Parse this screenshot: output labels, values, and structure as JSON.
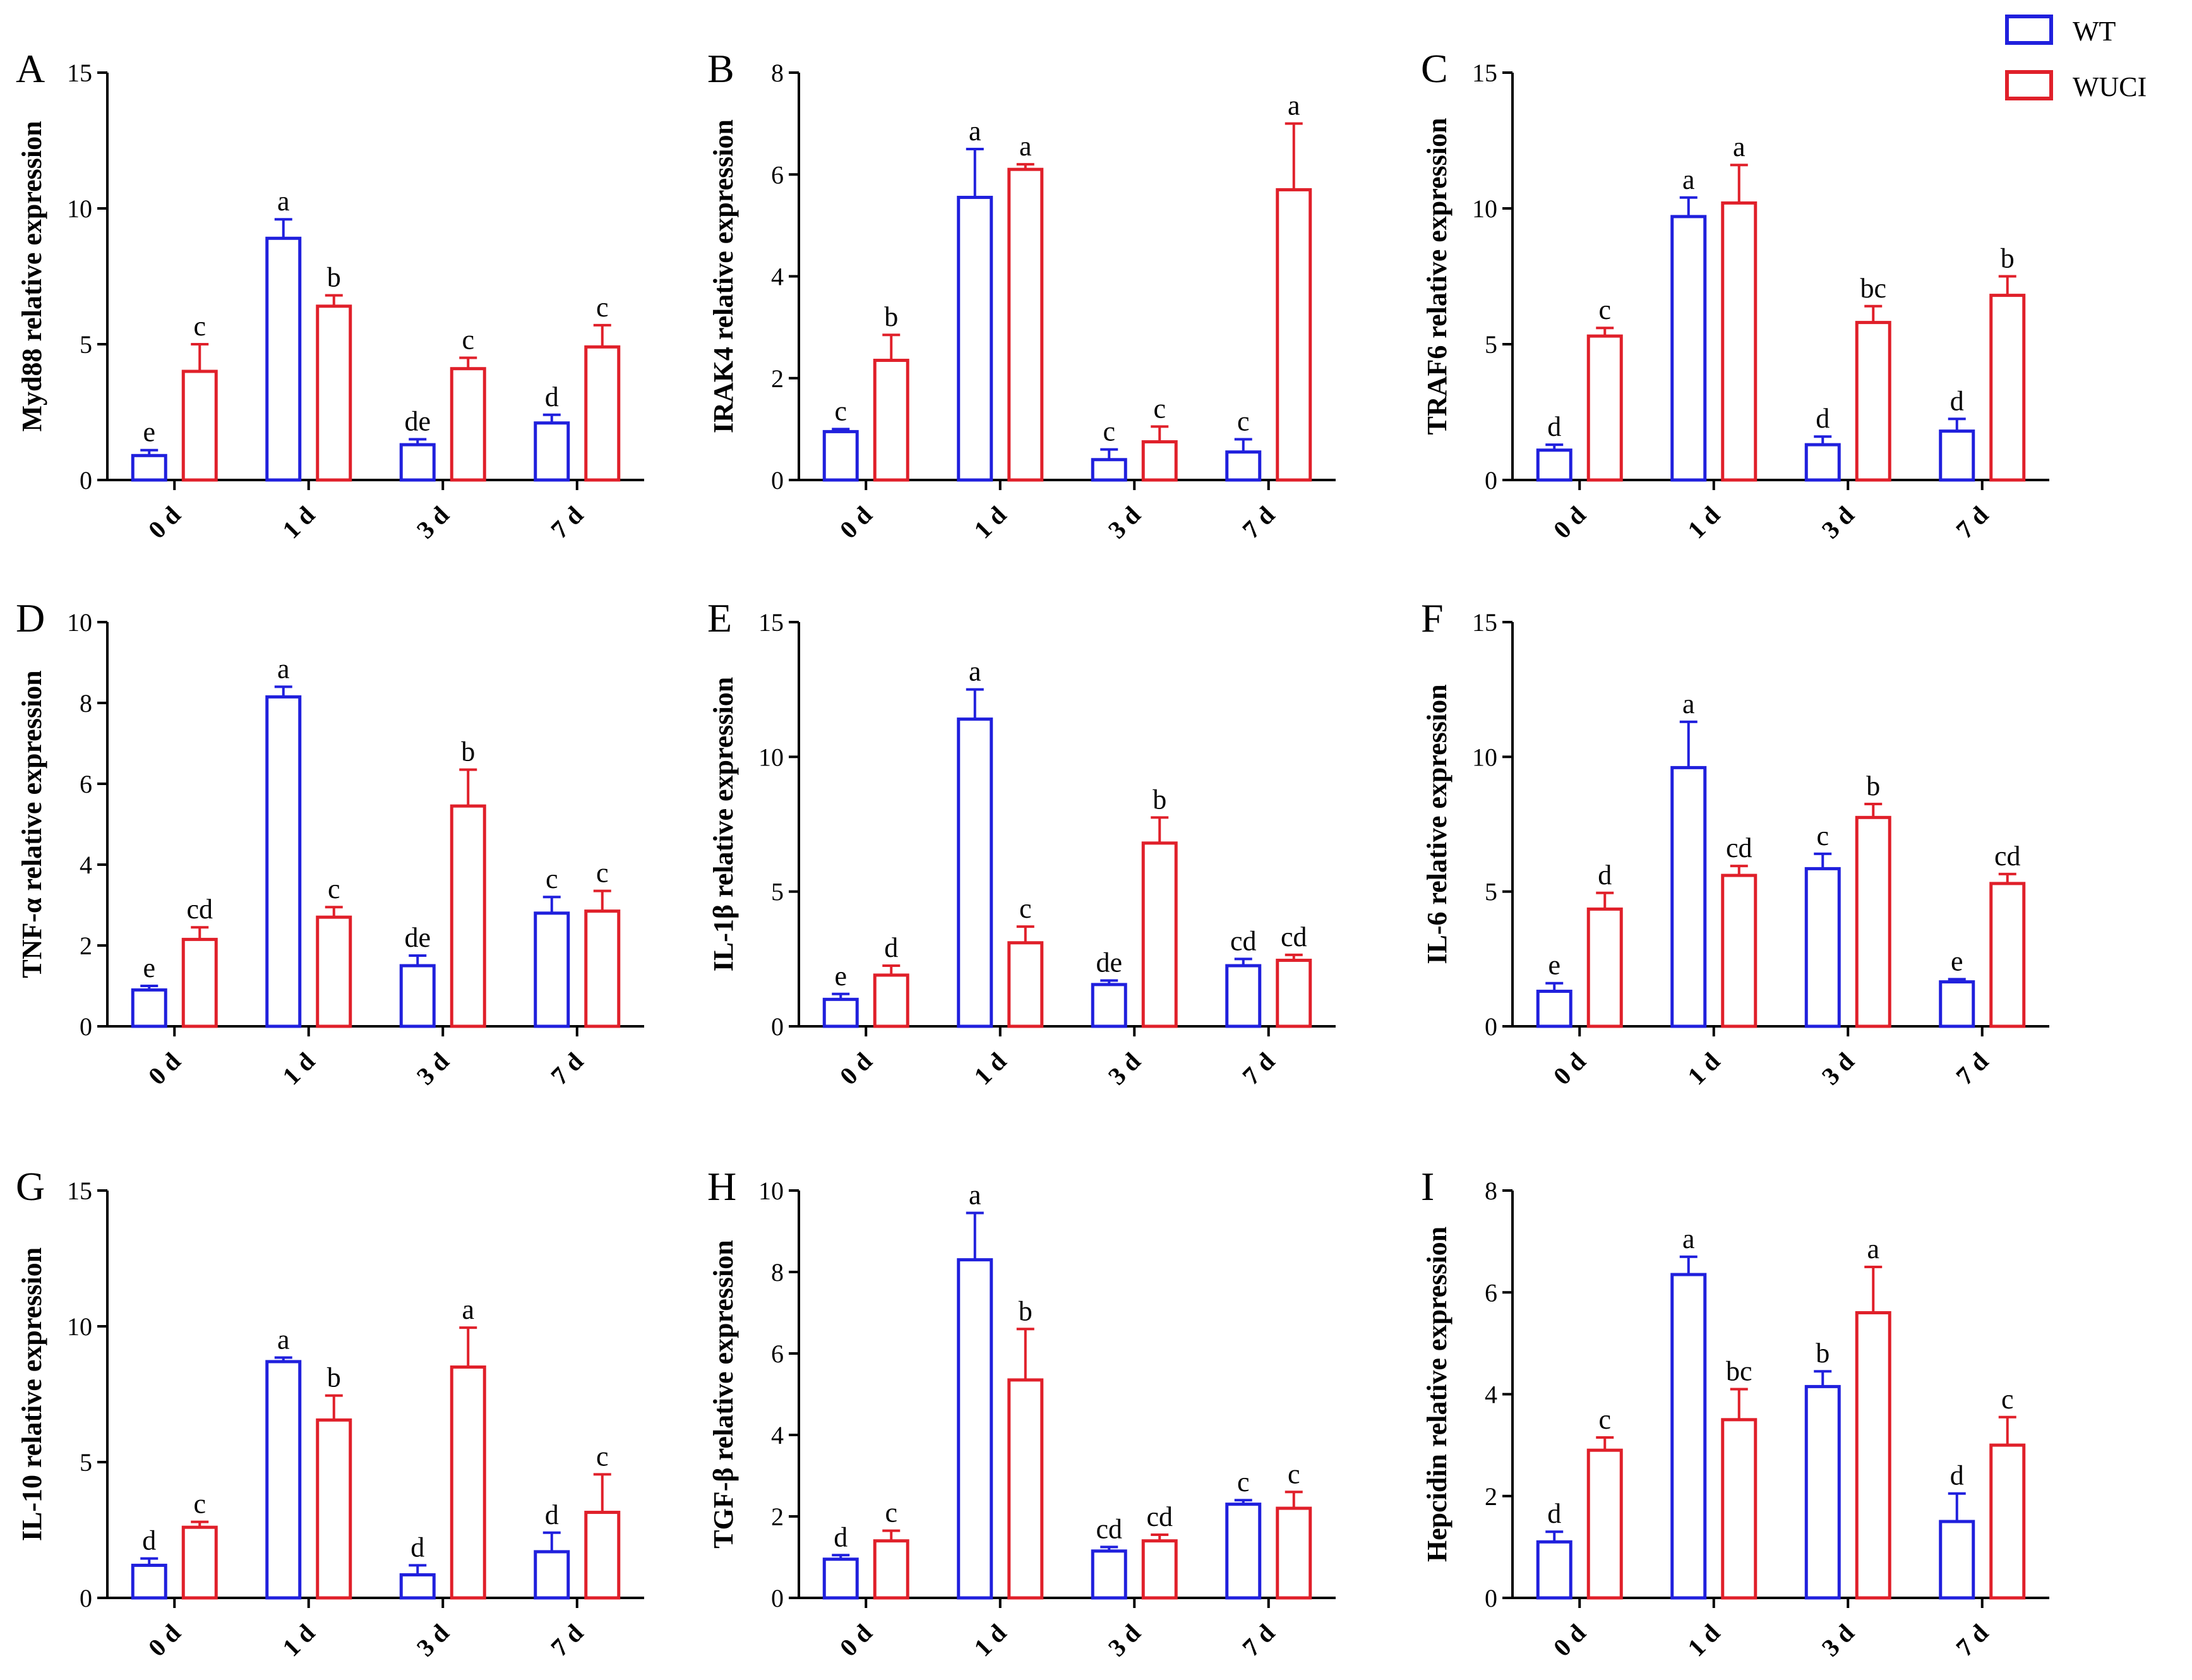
{
  "legend": [
    {
      "name": "WT",
      "color": "#2020dd"
    },
    {
      "name": "WUCI",
      "color": "#e0202a"
    }
  ],
  "chart_data": [
    {
      "panel": "A",
      "type": "bar",
      "ylabel": "Myd88 relative expression",
      "ylim": [
        0,
        15
      ],
      "yticks": [
        0,
        5,
        10,
        15
      ],
      "categories": [
        "0 d",
        "1 d",
        "3 d",
        "7 d"
      ],
      "series": [
        {
          "name": "WT",
          "values": [
            0.9,
            8.9,
            1.3,
            2.1
          ],
          "errors": [
            0.2,
            0.7,
            0.2,
            0.3
          ],
          "labels": [
            "e",
            "a",
            "de",
            "d"
          ]
        },
        {
          "name": "WUCI",
          "values": [
            4.0,
            6.4,
            4.1,
            4.9
          ],
          "errors": [
            1.0,
            0.4,
            0.4,
            0.8
          ],
          "labels": [
            "c",
            "b",
            "c",
            "c"
          ]
        }
      ]
    },
    {
      "panel": "B",
      "type": "bar",
      "ylabel": "IRAK4 relative expression",
      "ylim": [
        0,
        8
      ],
      "yticks": [
        0,
        2,
        4,
        6,
        8
      ],
      "categories": [
        "0 d",
        "1 d",
        "3 d",
        "7 d"
      ],
      "series": [
        {
          "name": "WT",
          "values": [
            0.95,
            5.55,
            0.4,
            0.55
          ],
          "errors": [
            0.05,
            0.95,
            0.2,
            0.25
          ],
          "labels": [
            "c",
            "a",
            "c",
            "c"
          ]
        },
        {
          "name": "WUCI",
          "values": [
            2.35,
            6.1,
            0.75,
            5.7
          ],
          "errors": [
            0.5,
            0.1,
            0.3,
            1.3
          ],
          "labels": [
            "b",
            "a",
            "c",
            "a"
          ]
        }
      ]
    },
    {
      "panel": "C",
      "type": "bar",
      "ylabel": "TRAF6 relative expression",
      "ylim": [
        0,
        15
      ],
      "yticks": [
        0,
        5,
        10,
        15
      ],
      "categories": [
        "0 d",
        "1 d",
        "3 d",
        "7 d"
      ],
      "series": [
        {
          "name": "WT",
          "values": [
            1.1,
            9.7,
            1.3,
            1.8
          ],
          "errors": [
            0.2,
            0.7,
            0.3,
            0.45
          ],
          "labels": [
            "d",
            "a",
            "d",
            "d"
          ]
        },
        {
          "name": "WUCI",
          "values": [
            5.3,
            10.2,
            5.8,
            6.8
          ],
          "errors": [
            0.3,
            1.4,
            0.6,
            0.7
          ],
          "labels": [
            "c",
            "a",
            "bc",
            "b"
          ]
        }
      ]
    },
    {
      "panel": "D",
      "type": "bar",
      "ylabel": "TNF-α relative expression",
      "ylim": [
        0,
        10
      ],
      "yticks": [
        0,
        2,
        4,
        6,
        8,
        10
      ],
      "categories": [
        "0 d",
        "1 d",
        "3 d",
        "7 d"
      ],
      "series": [
        {
          "name": "WT",
          "values": [
            0.9,
            8.15,
            1.5,
            2.8
          ],
          "errors": [
            0.1,
            0.25,
            0.25,
            0.4
          ],
          "labels": [
            "e",
            "a",
            "de",
            "c"
          ]
        },
        {
          "name": "WUCI",
          "values": [
            2.15,
            2.7,
            5.45,
            2.85
          ],
          "errors": [
            0.3,
            0.25,
            0.9,
            0.5
          ],
          "labels": [
            "cd",
            "c",
            "b",
            "c"
          ]
        }
      ]
    },
    {
      "panel": "E",
      "type": "bar",
      "ylabel": "IL-1β relative expression",
      "ylim": [
        0,
        15
      ],
      "yticks": [
        0,
        5,
        10,
        15
      ],
      "categories": [
        "0 d",
        "1 d",
        "3 d",
        "7 d"
      ],
      "series": [
        {
          "name": "WT",
          "values": [
            1.0,
            11.4,
            1.55,
            2.25
          ],
          "errors": [
            0.2,
            1.1,
            0.15,
            0.25
          ],
          "labels": [
            "e",
            "a",
            "de",
            "cd"
          ]
        },
        {
          "name": "WUCI",
          "values": [
            1.9,
            3.1,
            6.8,
            2.45
          ],
          "errors": [
            0.35,
            0.6,
            0.95,
            0.2
          ],
          "labels": [
            "d",
            "c",
            "b",
            "cd"
          ]
        }
      ]
    },
    {
      "panel": "F",
      "type": "bar",
      "ylabel": "IL-6 relative expression",
      "ylim": [
        0,
        15
      ],
      "yticks": [
        0,
        5,
        10,
        15
      ],
      "categories": [
        "0 d",
        "1 d",
        "3 d",
        "7 d"
      ],
      "series": [
        {
          "name": "WT",
          "values": [
            1.3,
            9.6,
            5.85,
            1.65
          ],
          "errors": [
            0.3,
            1.7,
            0.55,
            0.1
          ],
          "labels": [
            "e",
            "a",
            "c",
            "e"
          ]
        },
        {
          "name": "WUCI",
          "values": [
            4.35,
            5.6,
            7.75,
            5.3
          ],
          "errors": [
            0.6,
            0.35,
            0.5,
            0.35
          ],
          "labels": [
            "d",
            "cd",
            "b",
            "cd"
          ]
        }
      ]
    },
    {
      "panel": "G",
      "type": "bar",
      "ylabel": "IL-10 relative expression",
      "ylim": [
        0,
        15
      ],
      "yticks": [
        0,
        5,
        10,
        15
      ],
      "categories": [
        "0 d",
        "1 d",
        "3 d",
        "7 d"
      ],
      "series": [
        {
          "name": "WT",
          "values": [
            1.2,
            8.7,
            0.85,
            1.7
          ],
          "errors": [
            0.25,
            0.15,
            0.35,
            0.7
          ],
          "labels": [
            "d",
            "a",
            "d",
            "d"
          ]
        },
        {
          "name": "WUCI",
          "values": [
            2.6,
            6.55,
            8.5,
            3.15
          ],
          "errors": [
            0.2,
            0.9,
            1.45,
            1.4
          ],
          "labels": [
            "c",
            "b",
            "a",
            "c"
          ]
        }
      ]
    },
    {
      "panel": "H",
      "type": "bar",
      "ylabel": "TGF-β relative expression",
      "ylim": [
        0,
        10
      ],
      "yticks": [
        0,
        2,
        4,
        6,
        8,
        10
      ],
      "categories": [
        "0 d",
        "1 d",
        "3 d",
        "7 d"
      ],
      "series": [
        {
          "name": "WT",
          "values": [
            0.95,
            8.3,
            1.15,
            2.3
          ],
          "errors": [
            0.1,
            1.15,
            0.1,
            0.1
          ],
          "labels": [
            "d",
            "a",
            "cd",
            "c"
          ]
        },
        {
          "name": "WUCI",
          "values": [
            1.4,
            5.35,
            1.4,
            2.2
          ],
          "errors": [
            0.25,
            1.25,
            0.15,
            0.4
          ],
          "labels": [
            "c",
            "b",
            "cd",
            "c"
          ]
        }
      ]
    },
    {
      "panel": "I",
      "type": "bar",
      "ylabel": "Hepcidin relative expression",
      "ylim": [
        0,
        8
      ],
      "yticks": [
        0,
        2,
        4,
        6,
        8
      ],
      "categories": [
        "0 d",
        "1 d",
        "3 d",
        "7 d"
      ],
      "series": [
        {
          "name": "WT",
          "values": [
            1.1,
            6.35,
            4.15,
            1.5
          ],
          "errors": [
            0.2,
            0.35,
            0.3,
            0.55
          ],
          "labels": [
            "d",
            "a",
            "b",
            "d"
          ]
        },
        {
          "name": "WUCI",
          "values": [
            2.9,
            3.5,
            5.6,
            3.0
          ],
          "errors": [
            0.25,
            0.6,
            0.9,
            0.55
          ],
          "labels": [
            "c",
            "bc",
            "a",
            "c"
          ]
        }
      ]
    }
  ]
}
